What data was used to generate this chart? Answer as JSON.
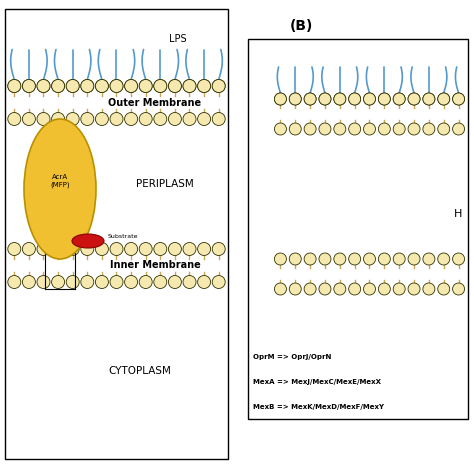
{
  "bg_color": "#ffffff",
  "membrane_circle_color": "#f5e9b0",
  "membrane_circle_edge": "#333300",
  "tail_color": "#c8a855",
  "lps_color": "#5599cc",
  "acra_color": "#f0c030",
  "acra_edge": "#b89000",
  "substrate_color": "#cc1111",
  "substrate_edge": "#880000",
  "text_color": "#000000",
  "label_B": "(B)",
  "lps_label": "LPS",
  "outer_mem_label": "Outer Membrane",
  "periplasm_label": "PERIPLASM",
  "inner_mem_label": "Inner Membrane",
  "cytoplasm_label": "CYTOPLASM",
  "acra_label": "AcrA\n(MFP)",
  "substrate_label": "Substrate",
  "legend_lines": [
    "OprM => OprJ/OprN",
    "MexA => MexJ/MexC/MexE/MexX",
    "MexB => MexK/MexD/MexF/MexY"
  ],
  "H_label": "H"
}
